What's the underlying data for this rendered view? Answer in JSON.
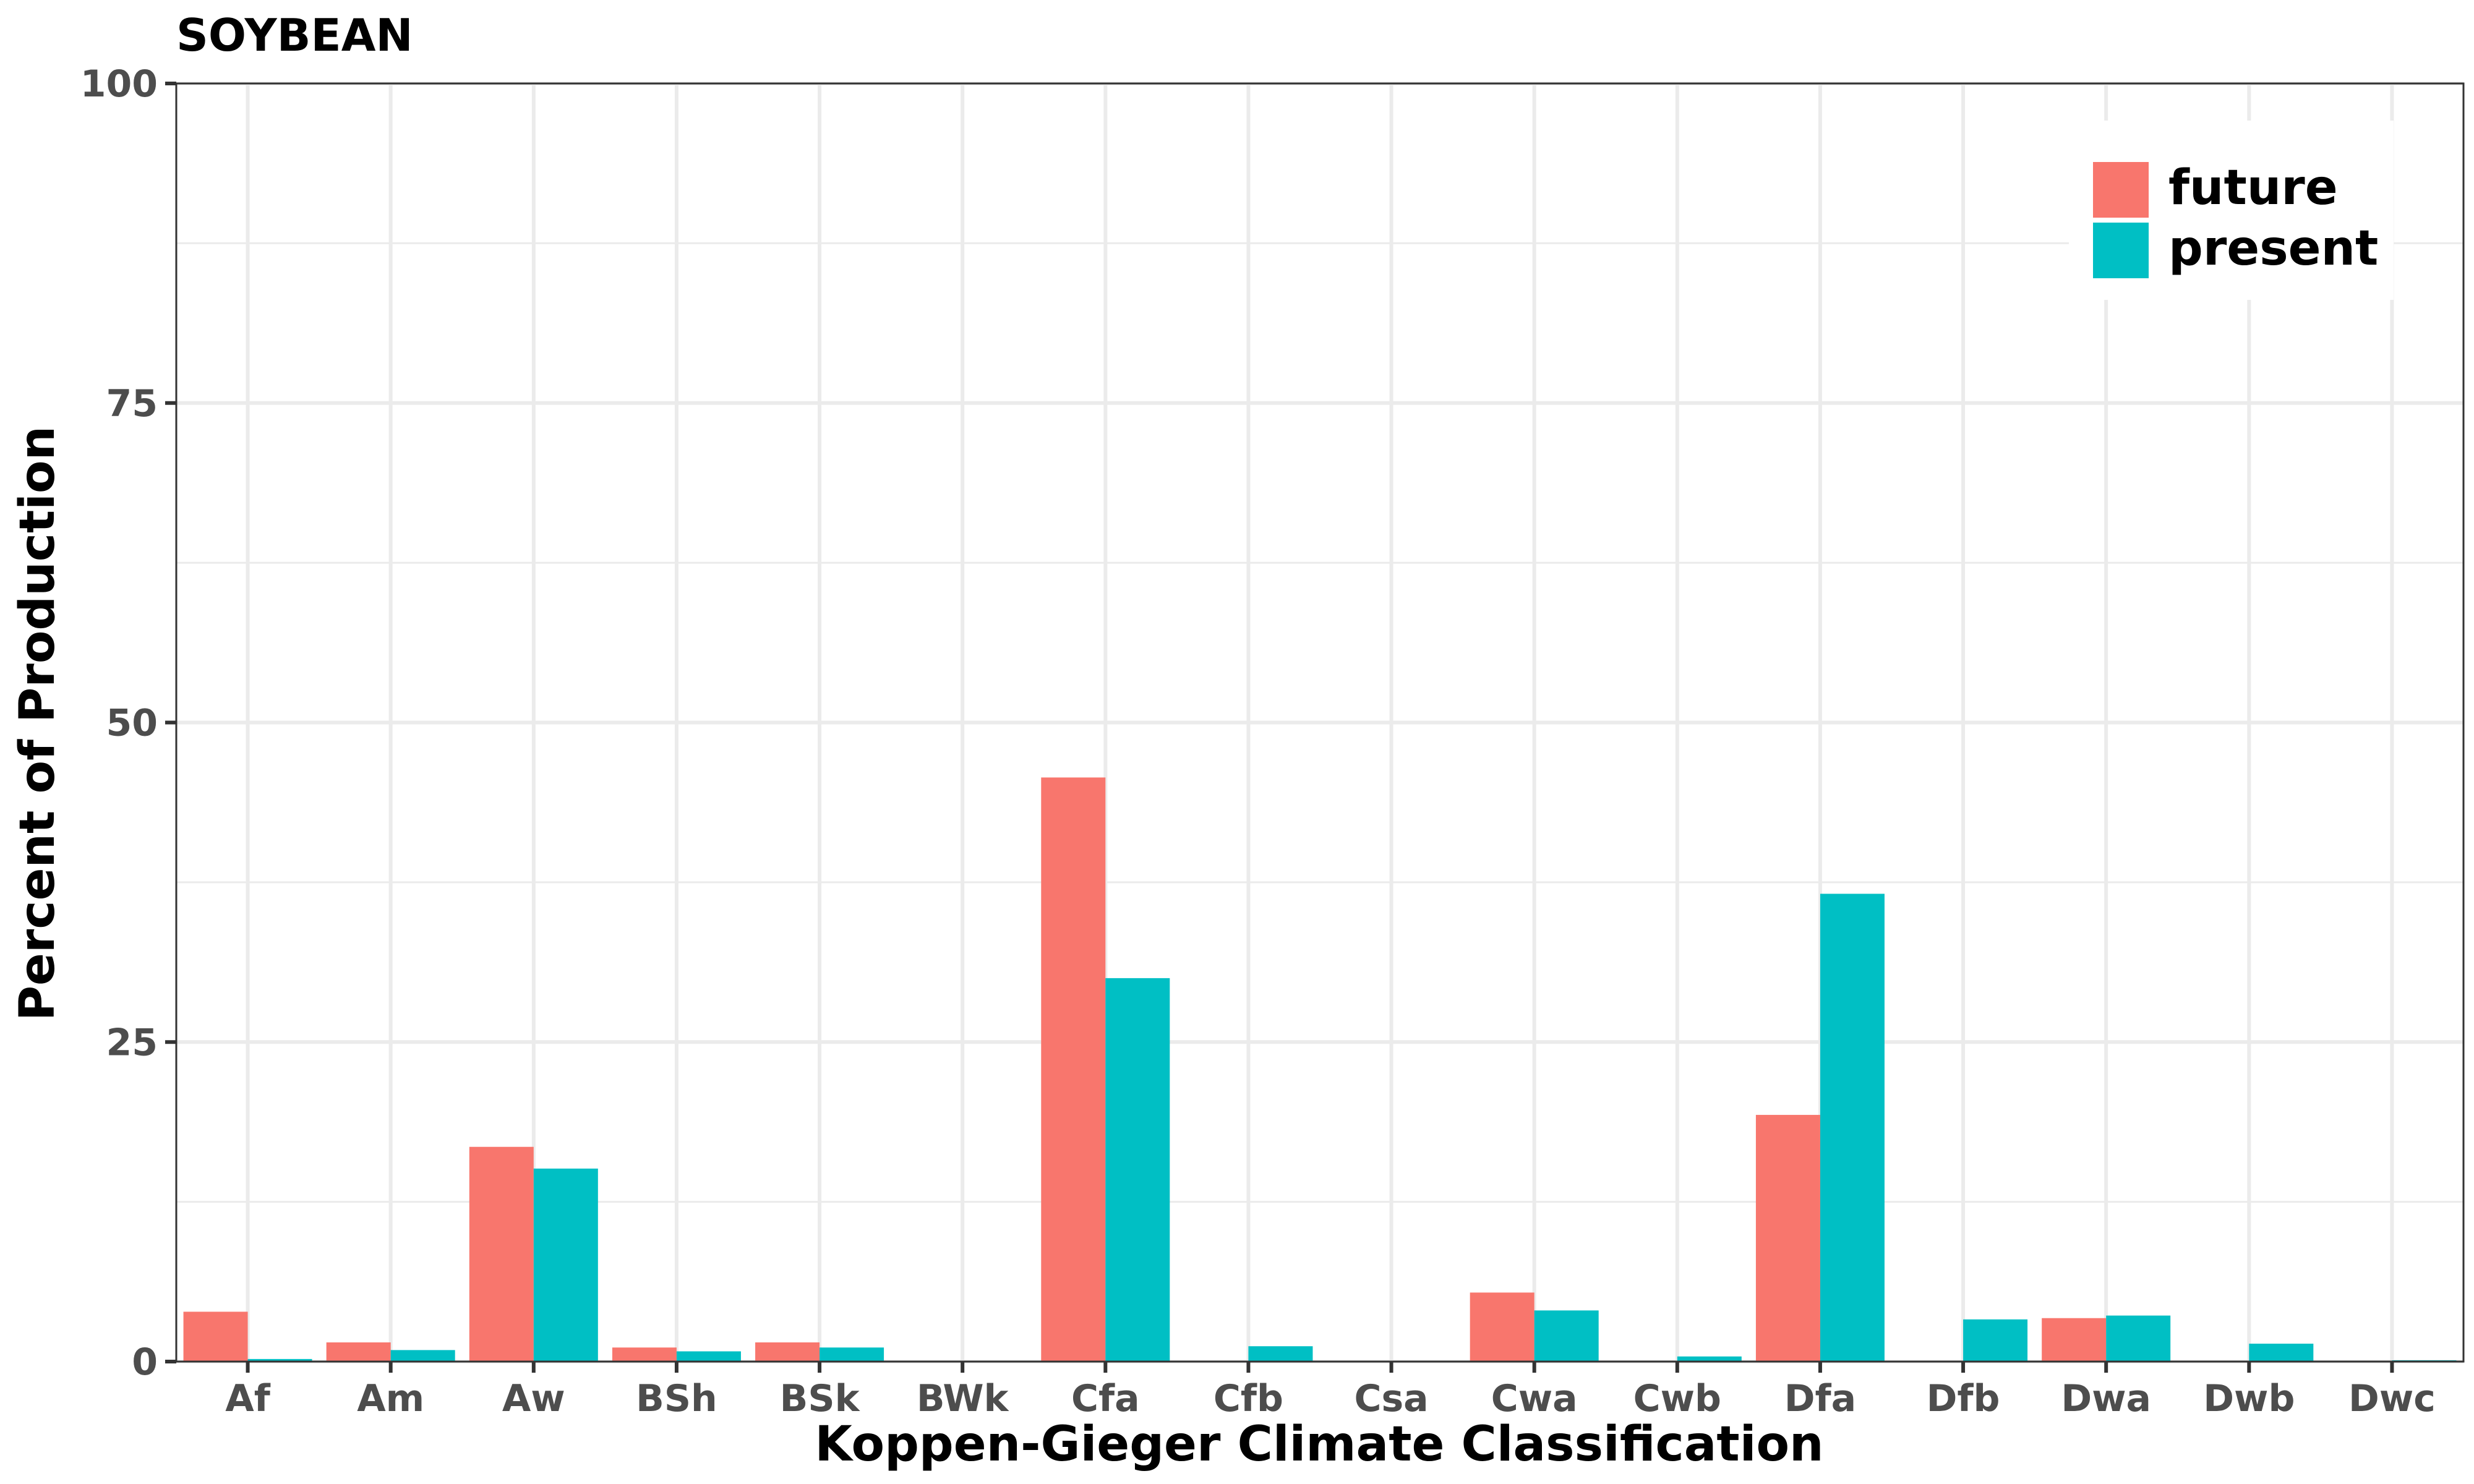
{
  "chart_data": {
    "type": "bar",
    "title": "SOYBEAN",
    "xlabel": "Koppen-Gieger Climate Classification",
    "ylabel": "Percent of Production",
    "categories": [
      "Af",
      "Am",
      "Aw",
      "BSh",
      "BSk",
      "BWk",
      "Cfa",
      "Cfb",
      "Csa",
      "Cwa",
      "Cwb",
      "Dfa",
      "Dfb",
      "Dwa",
      "Dwb",
      "Dwc"
    ],
    "series": [
      {
        "name": "future",
        "color": "#F8766D",
        "values": [
          3.9,
          1.5,
          16.8,
          1.1,
          1.5,
          0.0,
          45.7,
          0.0,
          0.0,
          5.4,
          0.0,
          19.3,
          0.0,
          3.4,
          0.0,
          0.0
        ]
      },
      {
        "name": "present",
        "color": "#00BFC4",
        "values": [
          0.2,
          0.9,
          15.1,
          0.8,
          1.1,
          0.0,
          30.0,
          1.2,
          0.0,
          4.0,
          0.4,
          36.6,
          3.3,
          3.6,
          1.4,
          0.1
        ]
      }
    ],
    "ylim": [
      0,
      100
    ],
    "yticks": [
      0,
      25,
      50,
      75,
      100
    ],
    "grid": true,
    "legend_position": "top-right"
  }
}
